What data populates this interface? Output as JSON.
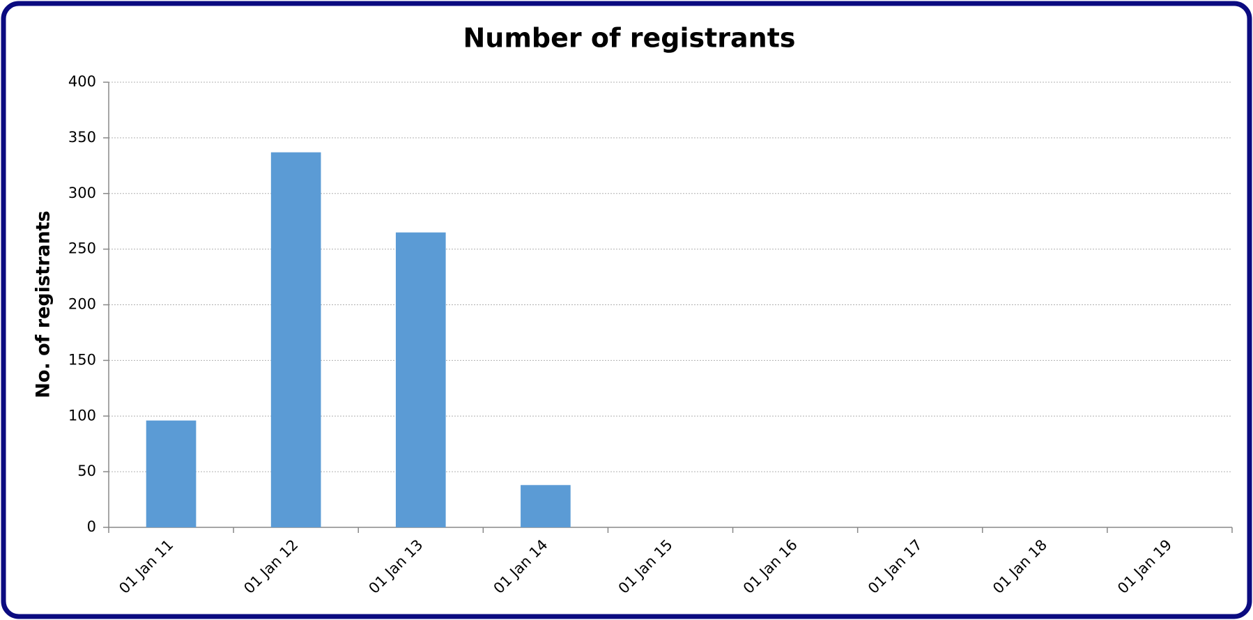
{
  "chart_data": {
    "type": "bar",
    "title": "Number of registrants",
    "y_label": "No. of registrants",
    "categories": [
      "01 Jan 11",
      "01 Jan 12",
      "01 Jan 13",
      "01 Jan 14",
      "01 Jan 15",
      "01 Jan 16",
      "01 Jan 17",
      "01 Jan 18",
      "01 Jan 19"
    ],
    "values": [
      96,
      337,
      265,
      38,
      0,
      0,
      0,
      0,
      0
    ],
    "color": "#5b9bd5",
    "ylim": [
      0,
      400
    ],
    "yticks": [
      0,
      50,
      100,
      150,
      200,
      250,
      300,
      350,
      400
    ],
    "grid": true
  }
}
